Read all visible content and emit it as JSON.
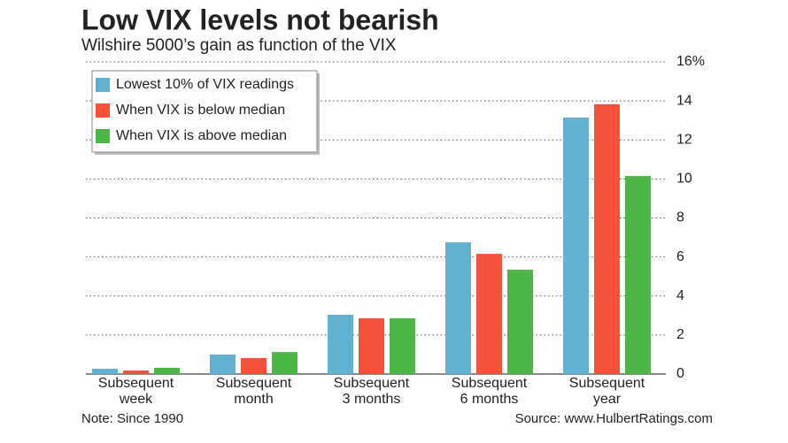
{
  "chart_data": {
    "type": "bar",
    "title": "Low VIX levels not bearish",
    "subtitle": "Wilshire 5000’s gain as function of the VIX",
    "categories": [
      [
        "Subsequent",
        "week"
      ],
      [
        "Subsequent",
        "month"
      ],
      [
        "Subsequent",
        "3 months"
      ],
      [
        "Subsequent",
        "6 months"
      ],
      [
        "Subsequent",
        "year"
      ]
    ],
    "series": [
      {
        "name": "Lowest 10% of VIX readings",
        "color": "#63b1d0",
        "values": [
          0.27,
          1.0,
          3.04,
          6.75,
          13.15
        ]
      },
      {
        "name": "When VIX is below median",
        "color": "#f4503a",
        "values": [
          0.18,
          0.82,
          2.86,
          6.16,
          13.83
        ]
      },
      {
        "name": "When VIX is above median",
        "color": "#4cb748",
        "values": [
          0.32,
          1.13,
          2.86,
          5.35,
          10.15
        ]
      }
    ],
    "ylim": [
      0,
      16
    ],
    "yticks": [
      0,
      2,
      4,
      6,
      8,
      10,
      12,
      14,
      {
        "value": 16,
        "label": "16%"
      }
    ],
    "grid": true,
    "legend": "upper-left",
    "note": "Note: Since 1990",
    "source": "Source: www.HulbertRatings.com"
  }
}
